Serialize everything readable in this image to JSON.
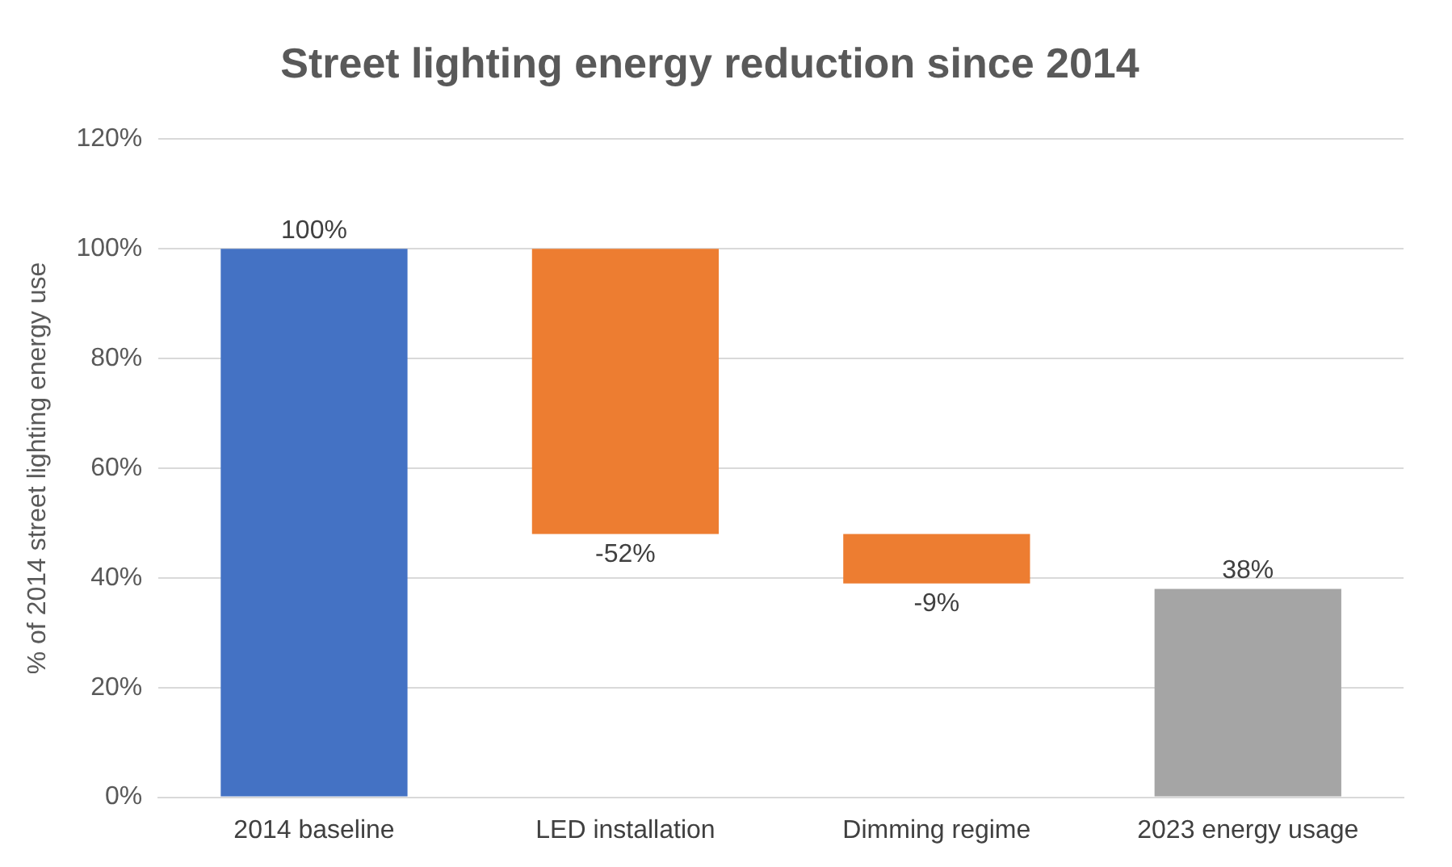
{
  "chart_data": {
    "type": "bar",
    "title": "Street lighting energy reduction since 2014",
    "ylabel": "% of 2014 street lighting energy use",
    "categories": [
      "2014 baseline",
      "LED installation",
      "Dimming regime",
      "2023 energy usage"
    ],
    "values": [
      100,
      -52,
      -9,
      38
    ],
    "base": [
      0,
      100,
      48,
      0
    ],
    "colors": [
      "#4472c4",
      "#ed7d31",
      "#ed7d31",
      "#a5a5a5"
    ],
    "value_labels": [
      "100%",
      "-52%",
      "-9%",
      "38%"
    ],
    "ylim": [
      0,
      120
    ],
    "yticks": [
      {
        "value": 0,
        "label": "0%"
      },
      {
        "value": 20,
        "label": "20%"
      },
      {
        "value": 40,
        "label": "40%"
      },
      {
        "value": 60,
        "label": "60%"
      },
      {
        "value": 80,
        "label": "80%"
      },
      {
        "value": 100,
        "label": "100%"
      },
      {
        "value": 120,
        "label": "120%"
      }
    ],
    "grid": "y",
    "legend": false
  }
}
